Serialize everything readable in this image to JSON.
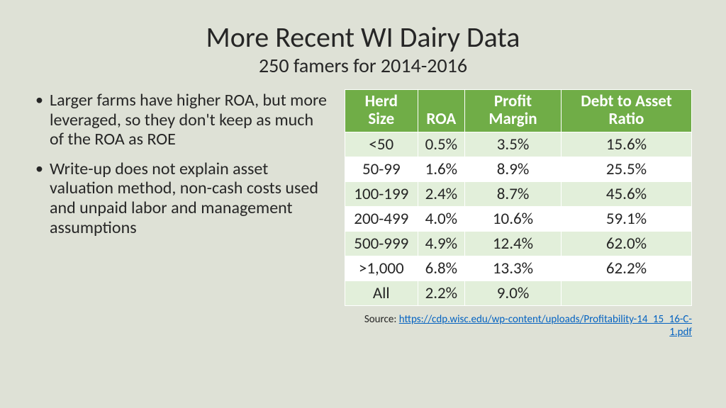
{
  "title": "More Recent WI Dairy Data",
  "subtitle": "250 famers for 2014-2016",
  "bullets": [
    "Larger farms have higher ROA, but more leveraged, so they don't keep as much of the ROA as ROE",
    "Write-up does not explain asset valuation method, non-cash costs used and unpaid labor and management assumptions"
  ],
  "table": {
    "type": "table",
    "header_bg": "#70ad47",
    "header_color": "#ffffff",
    "row_odd_bg": "#e2efda",
    "row_even_bg": "#ffffff",
    "font_size": 23,
    "columns": [
      "Herd Size",
      "ROA",
      "Profit Margin",
      "Debt to Asset Ratio"
    ],
    "rows": [
      [
        "<50",
        "0.5%",
        "3.5%",
        "15.6%"
      ],
      [
        "50-99",
        "1.6%",
        "8.9%",
        "25.5%"
      ],
      [
        "100-199",
        "2.4%",
        "8.7%",
        "45.6%"
      ],
      [
        "200-499",
        "4.0%",
        "10.6%",
        "59.1%"
      ],
      [
        "500-999",
        "4.9%",
        "12.4%",
        "62.0%"
      ],
      [
        ">1,000",
        "6.8%",
        "13.3%",
        "62.2%"
      ],
      [
        "All",
        "2.2%",
        "9.0%",
        ""
      ]
    ]
  },
  "source_label": "Source: ",
  "source_url": "https://cdp.wisc.edu/wp-content/uploads/Profitability-14_15_16-C-1.pdf",
  "background_color": "#dee1d6",
  "text_color": "#262626",
  "link_color": "#0563c1"
}
